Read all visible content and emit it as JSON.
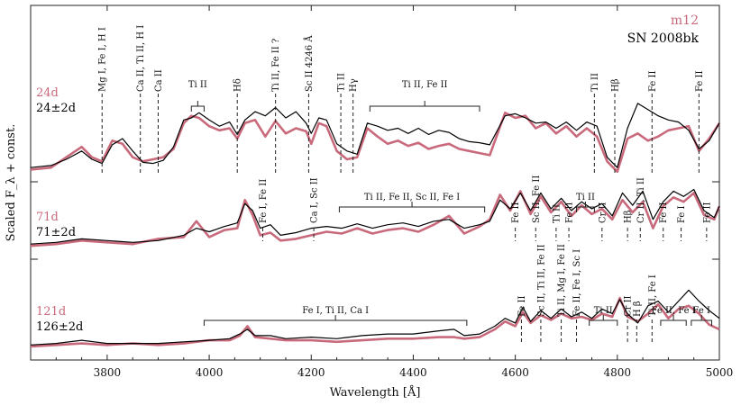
{
  "chart_data": {
    "type": "line",
    "xlabel": "Wavelength [Å]",
    "ylabel": "Scaled F_λ + const.",
    "xlim": [
      3650,
      5000
    ],
    "xticks": [
      3800,
      4000,
      4200,
      4400,
      4600,
      4800,
      5000
    ],
    "tick_labels": [
      "3800",
      "4000",
      "4200",
      "4400",
      "4600",
      "4800",
      "5000"
    ],
    "legend": [
      {
        "name": "m12",
        "color": "#c96a7c"
      },
      {
        "name": "SN 2008bk",
        "color": "#000000"
      }
    ],
    "panels": [
      {
        "id": "top",
        "model_epoch": "24d",
        "obs_epoch": "24±2d",
        "ylim": [
          0,
          1
        ],
        "series": [
          {
            "name": "m12",
            "color": "#c96a7c",
            "x": [
              3650,
              3690,
              3720,
              3750,
              3770,
              3790,
              3810,
              3830,
              3850,
              3870,
              3890,
              3910,
              3930,
              3950,
              3965,
              3980,
              4000,
              4020,
              4040,
              4055,
              4070,
              4090,
              4110,
              4130,
              4150,
              4170,
              4190,
              4200,
              4215,
              4230,
              4250,
              4270,
              4290,
              4310,
              4330,
              4350,
              4370,
              4390,
              4410,
              4430,
              4450,
              4470,
              4490,
              4510,
              4530,
              4550,
              4580,
              4600,
              4620,
              4640,
              4660,
              4680,
              4700,
              4720,
              4740,
              4760,
              4780,
              4800,
              4820,
              4840,
              4860,
              4880,
              4900,
              4920,
              4940,
              4960,
              4980,
              5000
            ],
            "y": [
              0.1,
              0.12,
              0.22,
              0.32,
              0.22,
              0.18,
              0.38,
              0.35,
              0.22,
              0.18,
              0.2,
              0.22,
              0.3,
              0.55,
              0.62,
              0.6,
              0.52,
              0.48,
              0.5,
              0.4,
              0.55,
              0.58,
              0.42,
              0.57,
              0.45,
              0.5,
              0.47,
              0.35,
              0.55,
              0.52,
              0.28,
              0.2,
              0.22,
              0.5,
              0.42,
              0.35,
              0.38,
              0.33,
              0.36,
              0.3,
              0.33,
              0.35,
              0.3,
              0.28,
              0.26,
              0.24,
              0.65,
              0.6,
              0.62,
              0.5,
              0.55,
              0.45,
              0.52,
              0.42,
              0.5,
              0.42,
              0.18,
              0.08,
              0.4,
              0.45,
              0.38,
              0.42,
              0.48,
              0.5,
              0.52,
              0.28,
              0.4,
              0.55
            ]
          },
          {
            "name": "SN 2008bk",
            "color": "#000000",
            "x": [
              3650,
              3690,
              3720,
              3750,
              3770,
              3790,
              3810,
              3830,
              3850,
              3870,
              3890,
              3910,
              3930,
              3950,
              3965,
              3980,
              4000,
              4020,
              4040,
              4055,
              4070,
              4090,
              4110,
              4130,
              4150,
              4170,
              4190,
              4200,
              4215,
              4230,
              4250,
              4270,
              4290,
              4310,
              4330,
              4350,
              4370,
              4390,
              4410,
              4430,
              4450,
              4470,
              4490,
              4510,
              4530,
              4550,
              4580,
              4600,
              4620,
              4640,
              4660,
              4680,
              4700,
              4720,
              4740,
              4760,
              4780,
              4800,
              4820,
              4840,
              4860,
              4880,
              4900,
              4920,
              4940,
              4960,
              4980,
              5000
            ],
            "y": [
              0.12,
              0.14,
              0.2,
              0.28,
              0.2,
              0.16,
              0.34,
              0.4,
              0.28,
              0.17,
              0.16,
              0.19,
              0.32,
              0.58,
              0.6,
              0.65,
              0.58,
              0.52,
              0.56,
              0.44,
              0.58,
              0.66,
              0.62,
              0.7,
              0.6,
              0.66,
              0.55,
              0.45,
              0.6,
              0.58,
              0.35,
              0.28,
              0.25,
              0.55,
              0.52,
              0.48,
              0.5,
              0.45,
              0.5,
              0.44,
              0.48,
              0.46,
              0.4,
              0.37,
              0.36,
              0.34,
              0.62,
              0.64,
              0.6,
              0.55,
              0.56,
              0.5,
              0.56,
              0.48,
              0.56,
              0.52,
              0.22,
              0.12,
              0.5,
              0.74,
              0.68,
              0.62,
              0.58,
              0.56,
              0.48,
              0.3,
              0.38,
              0.55
            ]
          }
        ],
        "annotations": [
          {
            "label": "Mg I, Fe I, H I",
            "x": 3790
          },
          {
            "label": "Ca II, Ti II, H I",
            "x": 3865
          },
          {
            "label": "Ca II",
            "x": 3900
          },
          {
            "label": "Hδ",
            "x": 4055
          },
          {
            "label": "Ti II, Fe II ?",
            "x": 4130
          },
          {
            "label": "Sc II 4246 Å",
            "x": 4195
          },
          {
            "label": "Ti II",
            "x": 4258
          },
          {
            "label": "Hγ",
            "x": 4282
          },
          {
            "label": "Ti II",
            "x": 4755
          },
          {
            "label": "Hβ",
            "x": 4795
          },
          {
            "label": "Fe II",
            "x": 4868
          },
          {
            "label": "Fe II",
            "x": 4960
          }
        ],
        "brackets": [
          {
            "label": "Ti II",
            "x1": 3965,
            "x2": 3990
          },
          {
            "label": "Ti II, Fe II",
            "x1": 4315,
            "x2": 4530
          }
        ]
      },
      {
        "id": "middle",
        "model_epoch": "71d",
        "obs_epoch": "71±2d",
        "ylim": [
          0,
          1
        ],
        "series": [
          {
            "name": "m12",
            "color": "#c96a7c",
            "x": [
              3650,
              3700,
              3750,
              3800,
              3850,
              3900,
              3950,
              3975,
              4000,
              4030,
              4055,
              4070,
              4085,
              4100,
              4120,
              4140,
              4170,
              4200,
              4230,
              4260,
              4290,
              4320,
              4350,
              4380,
              4410,
              4440,
              4470,
              4500,
              4530,
              4550,
              4570,
              4590,
              4610,
              4630,
              4650,
              4670,
              4690,
              4710,
              4730,
              4750,
              4770,
              4790,
              4810,
              4830,
              4850,
              4870,
              4890,
              4910,
              4930,
              4950,
              4970,
              4990,
              5000
            ],
            "y": [
              0.1,
              0.12,
              0.16,
              0.14,
              0.12,
              0.18,
              0.2,
              0.38,
              0.2,
              0.28,
              0.3,
              0.62,
              0.45,
              0.22,
              0.25,
              0.16,
              0.18,
              0.22,
              0.26,
              0.24,
              0.3,
              0.24,
              0.28,
              0.3,
              0.26,
              0.34,
              0.44,
              0.24,
              0.32,
              0.4,
              0.68,
              0.5,
              0.72,
              0.46,
              0.66,
              0.48,
              0.6,
              0.44,
              0.56,
              0.46,
              0.52,
              0.4,
              0.62,
              0.48,
              0.6,
              0.3,
              0.55,
              0.65,
              0.6,
              0.7,
              0.45,
              0.4,
              0.55
            ]
          },
          {
            "name": "SN 2008bk",
            "color": "#000000",
            "x": [
              3650,
              3700,
              3750,
              3800,
              3850,
              3900,
              3950,
              3975,
              4000,
              4030,
              4055,
              4070,
              4085,
              4100,
              4120,
              4140,
              4170,
              4200,
              4230,
              4260,
              4290,
              4320,
              4350,
              4380,
              4410,
              4440,
              4470,
              4500,
              4530,
              4550,
              4570,
              4590,
              4610,
              4630,
              4650,
              4670,
              4690,
              4710,
              4730,
              4750,
              4770,
              4790,
              4810,
              4830,
              4850,
              4870,
              4890,
              4910,
              4930,
              4950,
              4970,
              4990,
              5000
            ],
            "y": [
              0.12,
              0.14,
              0.18,
              0.16,
              0.14,
              0.16,
              0.22,
              0.3,
              0.26,
              0.32,
              0.36,
              0.58,
              0.5,
              0.3,
              0.34,
              0.22,
              0.25,
              0.3,
              0.32,
              0.3,
              0.35,
              0.3,
              0.34,
              0.36,
              0.32,
              0.38,
              0.4,
              0.3,
              0.34,
              0.38,
              0.62,
              0.52,
              0.7,
              0.5,
              0.7,
              0.52,
              0.64,
              0.5,
              0.6,
              0.52,
              0.58,
              0.44,
              0.7,
              0.56,
              0.72,
              0.4,
              0.6,
              0.72,
              0.66,
              0.74,
              0.5,
              0.42,
              0.55
            ]
          }
        ],
        "annotations": [
          {
            "label": "Fe I, Fe II",
            "x": 4105
          },
          {
            "label": "Ca I, Sc II",
            "x": 4205
          },
          {
            "label": "Fe II",
            "x": 4600
          },
          {
            "label": "Sc II, Fe II",
            "x": 4640
          },
          {
            "label": "Ti II",
            "x": 4680
          },
          {
            "label": "Fe II",
            "x": 4705
          },
          {
            "label": "Cr II",
            "x": 4770
          },
          {
            "label": "Hβ",
            "x": 4820
          },
          {
            "label": "Cr II, Ti II",
            "x": 4845
          },
          {
            "label": "Fe II",
            "x": 4890
          },
          {
            "label": "Fe I",
            "x": 4925
          },
          {
            "label": "Fe II",
            "x": 4975
          }
        ],
        "brackets": [
          {
            "label": "Ti II, Fe II, Sc II, Fe I",
            "x1": 4255,
            "x2": 4540
          },
          {
            "label": "Ti II",
            "x1": 4720,
            "x2": 4755
          }
        ]
      },
      {
        "id": "bottom",
        "model_epoch": "121d",
        "obs_epoch": "126±2d",
        "ylim": [
          0,
          1
        ],
        "series": [
          {
            "name": "m12",
            "color": "#c96a7c",
            "x": [
              3650,
              3700,
              3750,
              3800,
              3850,
              3900,
              3950,
              4000,
              4040,
              4060,
              4075,
              4090,
              4120,
              4150,
              4200,
              4250,
              4300,
              4350,
              4400,
              4450,
              4480,
              4500,
              4530,
              4560,
              4580,
              4600,
              4615,
              4630,
              4650,
              4670,
              4690,
              4710,
              4730,
              4750,
              4770,
              4790,
              4805,
              4820,
              4840,
              4860,
              4880,
              4900,
              4920,
              4940,
              4960,
              4980,
              5000
            ],
            "y": [
              0.08,
              0.1,
              0.12,
              0.1,
              0.12,
              0.1,
              0.12,
              0.16,
              0.16,
              0.22,
              0.34,
              0.2,
              0.18,
              0.16,
              0.16,
              0.14,
              0.16,
              0.18,
              0.18,
              0.2,
              0.2,
              0.18,
              0.2,
              0.3,
              0.4,
              0.34,
              0.52,
              0.38,
              0.48,
              0.42,
              0.5,
              0.44,
              0.46,
              0.42,
              0.5,
              0.46,
              0.7,
              0.46,
              0.4,
              0.5,
              0.62,
              0.44,
              0.56,
              0.6,
              0.5,
              0.36,
              0.3
            ]
          },
          {
            "name": "SN 2008bk",
            "color": "#000000",
            "x": [
              3650,
              3700,
              3750,
              3800,
              3850,
              3900,
              3950,
              4000,
              4040,
              4060,
              4075,
              4090,
              4120,
              4150,
              4200,
              4250,
              4300,
              4350,
              4400,
              4450,
              4480,
              4500,
              4530,
              4560,
              4580,
              4600,
              4615,
              4630,
              4650,
              4670,
              4690,
              4710,
              4730,
              4750,
              4770,
              4790,
              4805,
              4820,
              4840,
              4860,
              4880,
              4900,
              4920,
              4940,
              4960,
              4980,
              5000
            ],
            "y": [
              0.1,
              0.12,
              0.16,
              0.12,
              0.12,
              0.12,
              0.14,
              0.16,
              0.18,
              0.24,
              0.3,
              0.22,
              0.22,
              0.18,
              0.2,
              0.18,
              0.22,
              0.24,
              0.24,
              0.28,
              0.3,
              0.22,
              0.24,
              0.34,
              0.44,
              0.38,
              0.58,
              0.4,
              0.54,
              0.44,
              0.56,
              0.46,
              0.52,
              0.44,
              0.56,
              0.5,
              0.68,
              0.5,
              0.38,
              0.6,
              0.66,
              0.52,
              0.66,
              0.8,
              0.66,
              0.54,
              0.44
            ]
          }
        ],
        "annotations": [
          {
            "label": "Fe II",
            "x": 4612
          },
          {
            "label": "Sc II, Ti II, Fe II",
            "x": 4650
          },
          {
            "label": "Ti II, Mg I, Fe II",
            "x": 4690
          },
          {
            "label": "Fe II, Fe I, Sc I",
            "x": 4720
          },
          {
            "label": "Cr II",
            "x": 4820
          },
          {
            "label": "H β",
            "x": 4838
          },
          {
            "label": "Ti II, Fe I",
            "x": 4868
          }
        ],
        "brackets": [
          {
            "label": "Fe I, Ti II, Ca I",
            "x1": 3990,
            "x2": 4505
          },
          {
            "label": "Ti II",
            "x1": 4745,
            "x2": 4800
          },
          {
            "label": "Fe II, Fe I",
            "x1": 4885,
            "x2": 4935
          },
          {
            "label": "Fe I",
            "x1": 4945,
            "x2": 4985
          }
        ]
      }
    ]
  }
}
